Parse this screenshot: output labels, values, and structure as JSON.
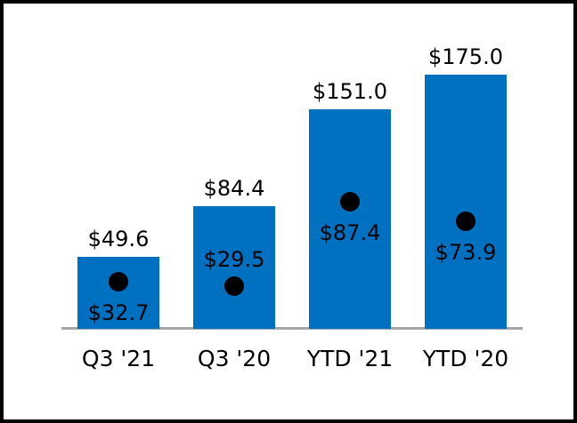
{
  "chart_data": {
    "type": "bar",
    "categories": [
      "Q3 '21",
      "Q3 '20",
      "YTD '21",
      "YTD '20"
    ],
    "series": [
      {
        "name": "bar-totals",
        "values": [
          49.6,
          84.4,
          151.0,
          175.0
        ],
        "labels": [
          "$49.6",
          "$84.4",
          "$151.0",
          "$175.0"
        ]
      },
      {
        "name": "dot-markers",
        "values": [
          32.7,
          29.5,
          87.4,
          73.9
        ],
        "labels": [
          "$32.7",
          "$29.5",
          "$87.4",
          "$73.9"
        ]
      }
    ],
    "dot_label_positions": [
      "below",
      "above",
      "below",
      "below"
    ],
    "ylim": [
      0,
      175
    ],
    "legend": "none",
    "grid": "off",
    "colors": {
      "bar": "#0070C0",
      "dot": "#000000",
      "axis_line": "#a6a6a6",
      "text": "#000000",
      "frame_border": "#000000",
      "background": "#ffffff"
    }
  }
}
